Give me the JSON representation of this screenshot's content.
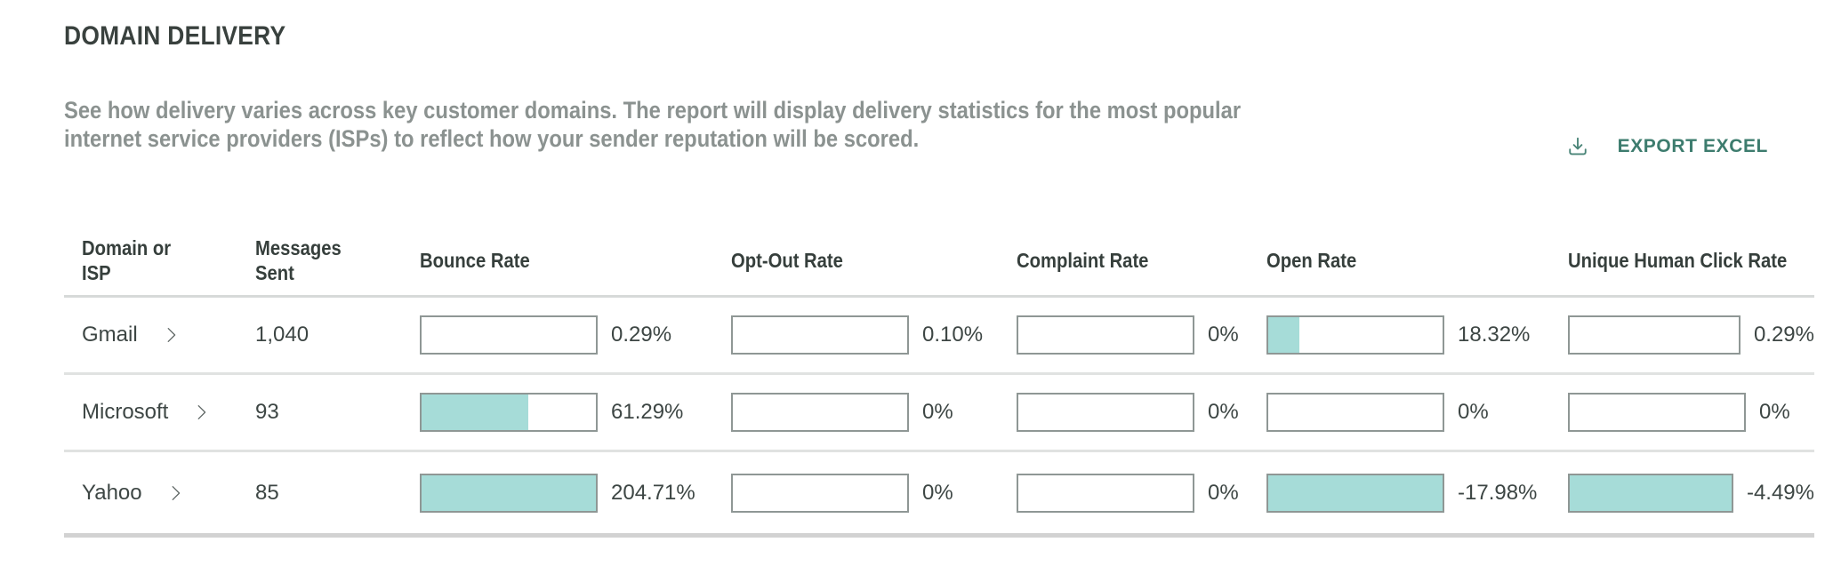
{
  "header": {
    "title": "DOMAIN DELIVERY",
    "description_line1": "See how delivery varies across key customer domains. The report will display delivery statistics for the most popular",
    "description_line2": "internet service providers (ISPs) to reflect how your sender reputation will be scored.",
    "export_label": "EXPORT EXCEL"
  },
  "colors": {
    "accent_teal": "#3d7c6e",
    "bar_fill": "#a6dcd8",
    "bar_border": "#8f9795",
    "title_text": "#39413e",
    "description_text": "#8b9290"
  },
  "table": {
    "columns": [
      "Domain or ISP",
      "Messages Sent",
      "Bounce Rate",
      "Opt-Out Rate",
      "Complaint Rate",
      "Open Rate",
      "Unique Human Click Rate"
    ],
    "rows": [
      {
        "domain": "Gmail",
        "messages": "1,040",
        "metrics": [
          {
            "label": "0.29%",
            "fill_pct": 0
          },
          {
            "label": "0.10%",
            "fill_pct": 0
          },
          {
            "label": "0%",
            "fill_pct": 0
          },
          {
            "label": "18.32%",
            "fill_pct": 18
          },
          {
            "label": "0.29%",
            "fill_pct": 0
          }
        ]
      },
      {
        "domain": "Microsoft",
        "messages": "93",
        "metrics": [
          {
            "label": "61.29%",
            "fill_pct": 61
          },
          {
            "label": "0%",
            "fill_pct": 0
          },
          {
            "label": "0%",
            "fill_pct": 0
          },
          {
            "label": "0%",
            "fill_pct": 0
          },
          {
            "label": "0%",
            "fill_pct": 0
          }
        ]
      },
      {
        "domain": "Yahoo",
        "messages": "85",
        "metrics": [
          {
            "label": "204.71%",
            "fill_pct": 100
          },
          {
            "label": "0%",
            "fill_pct": 0
          },
          {
            "label": "0%",
            "fill_pct": 0
          },
          {
            "label": "-17.98%",
            "fill_pct": 100
          },
          {
            "label": "-4.49%",
            "fill_pct": 100
          }
        ]
      }
    ]
  }
}
